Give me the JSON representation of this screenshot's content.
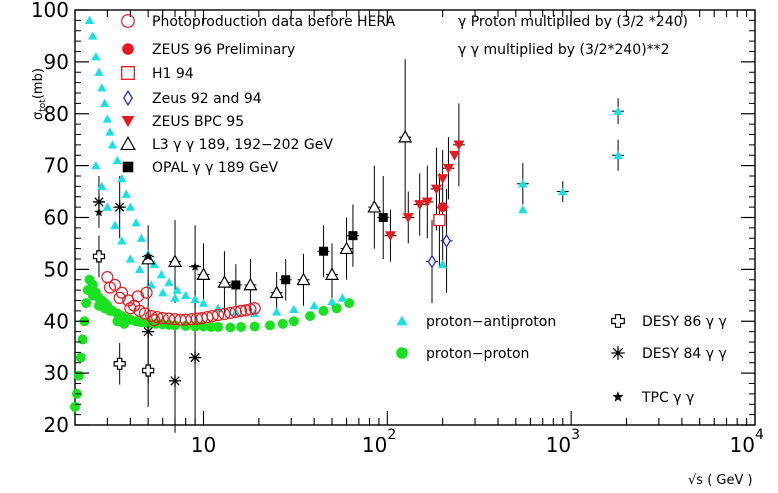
{
  "chart_data": {
    "type": "scatter",
    "xscale": "log",
    "xlim": [
      2,
      10000
    ],
    "ylim": [
      20,
      100
    ],
    "xlabel": "√s ( GeV )",
    "ylabel": "σtot(mb)",
    "ylabel_main": "σ",
    "ylabel_sub": "tot",
    "ylabel_rest": "(mb)",
    "x_ticks": [
      {
        "value": 10,
        "label": "10",
        "exp": ""
      },
      {
        "value": 100,
        "label": "10",
        "exp": "2"
      },
      {
        "value": 1000,
        "label": "10",
        "exp": "3"
      },
      {
        "value": 10000,
        "label": "10",
        "exp": "4"
      }
    ],
    "y_ticks": [
      20,
      30,
      40,
      50,
      60,
      70,
      80,
      90,
      100
    ],
    "notes": [
      "γ Proton multiplied by (3/2 *240)",
      "γ γ multiplied by (3/2*240)**2"
    ],
    "series": [
      {
        "name": "Photoproduction data before HERA",
        "marker": "open-circle",
        "color": "#e8191e",
        "x": [
          3.0,
          3.3,
          3.6,
          3.9,
          4.2,
          4.5,
          4.8,
          5.2,
          5.6,
          6.0,
          6.5,
          7.0,
          7.5,
          8.0,
          8.6,
          9.2,
          9.8,
          10.5,
          11.2,
          12.0,
          13.0,
          14.0,
          15.0,
          16.0,
          17.0,
          18.0,
          19.0,
          3.1,
          3.5,
          4.0,
          4.4,
          4.9,
          5.4
        ],
        "y": [
          48.5,
          47.0,
          45.5,
          44.0,
          43.0,
          42.0,
          41.5,
          41.0,
          40.8,
          40.6,
          40.5,
          40.4,
          40.3,
          40.3,
          40.4,
          40.5,
          40.6,
          40.8,
          41.0,
          41.2,
          41.4,
          41.6,
          41.8,
          42.0,
          42.1,
          42.3,
          42.5,
          46.5,
          44.5,
          42.5,
          44.8,
          45.5,
          40.2
        ]
      },
      {
        "name": "ZEUS 96 Preliminary",
        "marker": "filled-circle",
        "color": "#e8191e",
        "x": [
          200
        ],
        "y": [
          62
        ]
      },
      {
        "name": "H1 94",
        "marker": "open-square",
        "color": "#e8191e",
        "x": [
          192
        ],
        "y": [
          59.5
        ]
      },
      {
        "name": "Zeus 92 and 94",
        "marker": "open-diamond",
        "color": "#1f2ccf",
        "x": [
          175,
          210
        ],
        "y": [
          51.5,
          55.5
        ]
      },
      {
        "name": "ZEUS BPC 95",
        "marker": "filled-triangle-down",
        "color": "#e8191e",
        "x": [
          104,
          130,
          150,
          165,
          185,
          200,
          215,
          232,
          245
        ],
        "y": [
          56.5,
          60,
          62.5,
          63,
          65.5,
          67.5,
          69.5,
          72,
          74
        ]
      },
      {
        "name": "L3 γ γ  189, 192−202 GeV",
        "marker": "open-triangle",
        "color": "#000000",
        "x": [
          5,
          7,
          10,
          13,
          18,
          25,
          35,
          50,
          60,
          85,
          125
        ],
        "y": [
          52,
          51.5,
          49,
          47.5,
          47,
          45.5,
          48,
          49,
          54,
          62,
          75.5
        ]
      },
      {
        "name": "OPAL γ γ 189 GeV",
        "marker": "filled-square",
        "color": "#000000",
        "x": [
          15,
          28,
          45,
          65,
          95
        ],
        "y": [
          47,
          48,
          53.5,
          56.5,
          60
        ]
      },
      {
        "name": "proton−antiproton",
        "marker": "filled-triangle",
        "color": "#14e1e6",
        "x": [
          2.4,
          2.5,
          2.6,
          2.7,
          2.8,
          2.9,
          3.0,
          3.1,
          3.2,
          3.4,
          3.6,
          3.8,
          4.0,
          4.3,
          4.6,
          5.0,
          5.4,
          5.9,
          6.5,
          7.2,
          8.0,
          9.0,
          10,
          12,
          15,
          19,
          25,
          31,
          40,
          50,
          57,
          200,
          546,
          546,
          900,
          1800,
          1800,
          2.6,
          2.8,
          3.0,
          3.3,
          3.6,
          4.0,
          4.5,
          5.2,
          6.0,
          7.0
        ],
        "y": [
          98,
          95,
          91,
          88,
          85,
          82,
          79,
          76.5,
          74,
          71,
          67.5,
          64.5,
          62,
          59,
          56,
          53,
          51,
          49,
          47.5,
          46,
          45,
          44.2,
          43.5,
          42.5,
          41.8,
          41.5,
          41.8,
          42.3,
          43,
          43.8,
          44.5,
          51,
          61.5,
          66.5,
          65,
          72,
          80.5,
          70,
          66,
          62,
          58.5,
          55.5,
          52,
          50,
          47,
          45.5,
          44.5
        ]
      },
      {
        "name": "proton−proton",
        "marker": "filled-circle",
        "color": "#16e21e",
        "x": [
          2.0,
          2.05,
          2.1,
          2.15,
          2.2,
          2.25,
          2.3,
          2.35,
          2.4,
          2.5,
          2.6,
          2.7,
          2.8,
          2.9,
          3.0,
          3.2,
          3.4,
          3.6,
          3.8,
          4.0,
          4.3,
          4.6,
          5.0,
          5.5,
          6.0,
          6.5,
          7.0,
          8.0,
          9.0,
          10,
          11,
          12,
          14,
          16,
          19,
          23,
          27,
          31,
          38,
          45,
          53,
          62,
          2.5,
          2.7,
          2.9,
          3.1,
          3.4,
          3.7
        ],
        "y": [
          23.5,
          26,
          29.5,
          33,
          36.5,
          40,
          43.5,
          46,
          48,
          47,
          45.5,
          44.5,
          44,
          43.5,
          43,
          42,
          41.5,
          41,
          40.5,
          40.3,
          40,
          39.8,
          39.6,
          39.5,
          39.4,
          39.3,
          39.2,
          39.1,
          39.0,
          39.0,
          38.9,
          38.9,
          38.8,
          38.9,
          39.0,
          39.2,
          39.5,
          40,
          41,
          42,
          42.5,
          43.5,
          45,
          43,
          42.5,
          42,
          40,
          39.5
        ]
      },
      {
        "name": "DESY 86 γ γ",
        "marker": "open-cross",
        "color": "#000000",
        "x": [
          2.7,
          3.5,
          5.0
        ],
        "y": [
          52.5,
          31.8,
          30.5
        ]
      },
      {
        "name": "DESY 84 γ γ",
        "marker": "asterisk",
        "color": "#000000",
        "x": [
          2.7,
          3.5,
          5.0,
          7.0,
          9.0
        ],
        "y": [
          63,
          62,
          38,
          28.5,
          33
        ]
      },
      {
        "name": "TPC γ γ",
        "marker": "star",
        "color": "#000000",
        "x": [
          2.7,
          5.0,
          9.0
        ],
        "y": [
          61,
          52.5,
          50.5
        ]
      }
    ],
    "error_bars": [
      {
        "x": 2.7,
        "y": 63,
        "err": 5
      },
      {
        "x": 2.7,
        "y": 52.5,
        "err": 4
      },
      {
        "x": 3.5,
        "y": 62,
        "err": 6
      },
      {
        "x": 3.5,
        "y": 31.8,
        "err": 4
      },
      {
        "x": 5.0,
        "y": 38,
        "err": 10
      },
      {
        "x": 5.0,
        "y": 30.5,
        "err": 7
      },
      {
        "x": 5.0,
        "y": 52.5,
        "err": 6
      },
      {
        "x": 7.0,
        "y": 28.5,
        "err": 10
      },
      {
        "x": 7.0,
        "y": 51.5,
        "err": 8
      },
      {
        "x": 9.0,
        "y": 33,
        "err": 13
      },
      {
        "x": 9.0,
        "y": 50.5,
        "err": 8
      },
      {
        "x": 10,
        "y": 49,
        "err": 6
      },
      {
        "x": 13,
        "y": 47.5,
        "err": 6
      },
      {
        "x": 15,
        "y": 47,
        "err": 4
      },
      {
        "x": 18,
        "y": 47,
        "err": 5
      },
      {
        "x": 25,
        "y": 45.5,
        "err": 4
      },
      {
        "x": 28,
        "y": 48,
        "err": 4
      },
      {
        "x": 35,
        "y": 48,
        "err": 5
      },
      {
        "x": 45,
        "y": 53.5,
        "err": 5
      },
      {
        "x": 50,
        "y": 49,
        "err": 6
      },
      {
        "x": 60,
        "y": 54,
        "err": 6
      },
      {
        "x": 65,
        "y": 56.5,
        "err": 6
      },
      {
        "x": 85,
        "y": 62,
        "err": 8
      },
      {
        "x": 95,
        "y": 60,
        "err": 8
      },
      {
        "x": 125,
        "y": 75.5,
        "err": 15
      },
      {
        "x": 104,
        "y": 56.5,
        "err": 5
      },
      {
        "x": 130,
        "y": 60,
        "err": 5
      },
      {
        "x": 150,
        "y": 62.5,
        "err": 6
      },
      {
        "x": 165,
        "y": 63,
        "err": 7
      },
      {
        "x": 175,
        "y": 51.5,
        "err": 8
      },
      {
        "x": 185,
        "y": 65.5,
        "err": 8
      },
      {
        "x": 192,
        "y": 59.5,
        "err": 9
      },
      {
        "x": 200,
        "y": 62,
        "err": 11
      },
      {
        "x": 210,
        "y": 55.5,
        "err": 10
      },
      {
        "x": 215,
        "y": 69.5,
        "err": 6
      },
      {
        "x": 245,
        "y": 74,
        "err": 8
      },
      {
        "x": 546,
        "y": 66.5,
        "err": 4
      },
      {
        "x": 900,
        "y": 65,
        "err": 2
      },
      {
        "x": 1800,
        "y": 72,
        "err": 3
      },
      {
        "x": 1800,
        "y": 80.5,
        "err": 2.5
      }
    ]
  }
}
